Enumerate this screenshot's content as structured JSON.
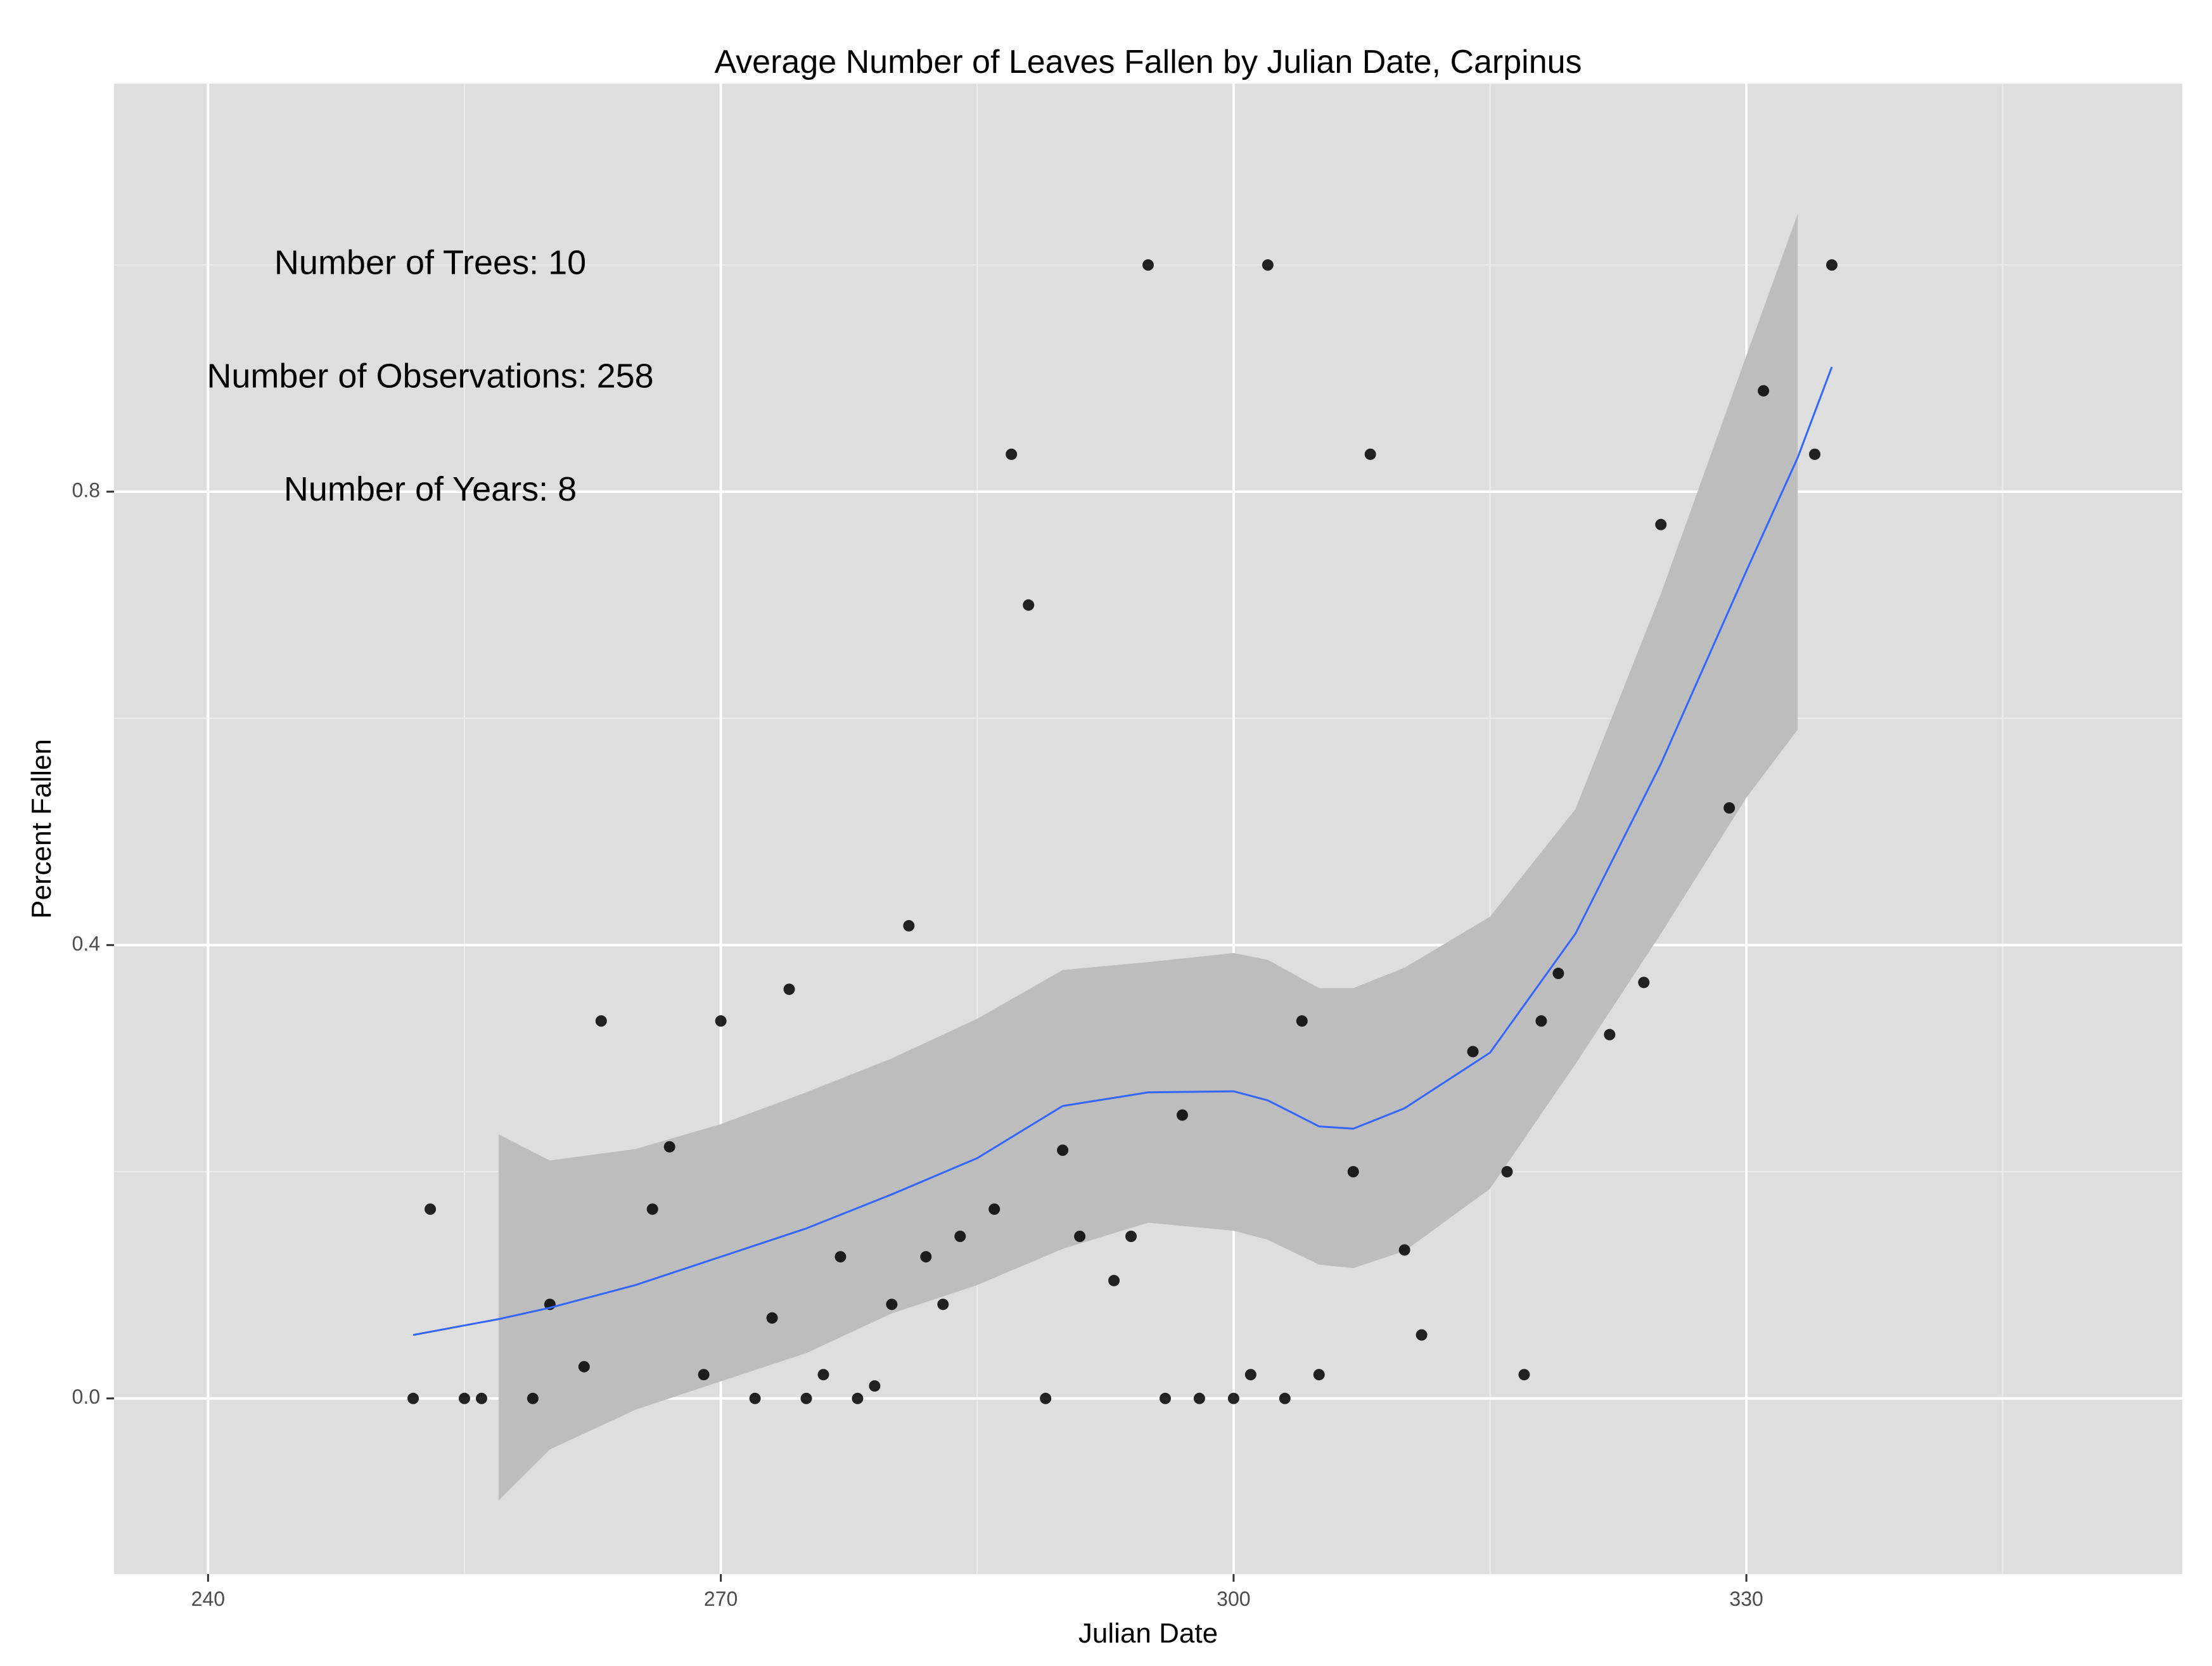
{
  "chart_data": {
    "type": "scatter",
    "title": "Average Number of Leaves Fallen by Julian Date, Carpinus",
    "xlabel": "Julian Date",
    "ylabel": "Percent Fallen",
    "xlim": [
      234.5,
      355.5
    ],
    "ylim": [
      -0.155,
      1.16
    ],
    "x_ticks": [
      240,
      270,
      300,
      330
    ],
    "x_tick_labels": [
      "240",
      "270",
      "300",
      "330"
    ],
    "x_minor_ticks": [
      255,
      285,
      315,
      345
    ],
    "y_ticks": [
      0.0,
      0.4,
      0.8
    ],
    "y_tick_labels": [
      "0.0",
      "0.4",
      "0.8"
    ],
    "y_minor_ticks": [
      0.2,
      0.6,
      1.0
    ],
    "grid": true,
    "annotations": [
      {
        "text": "Number of Trees: 10",
        "x": 253,
        "y": 1.0
      },
      {
        "text": "Number of Observations: 258",
        "x": 253,
        "y": 0.9
      },
      {
        "text": "Number of Years: 8",
        "x": 253,
        "y": 0.8
      }
    ],
    "points": [
      {
        "x": 252,
        "y": 0.0
      },
      {
        "x": 253,
        "y": 0.167
      },
      {
        "x": 255,
        "y": 0.0
      },
      {
        "x": 256,
        "y": 0.0
      },
      {
        "x": 259,
        "y": 0.0
      },
      {
        "x": 260,
        "y": 0.083
      },
      {
        "x": 262,
        "y": 0.028
      },
      {
        "x": 263,
        "y": 0.333
      },
      {
        "x": 266,
        "y": 0.167
      },
      {
        "x": 267,
        "y": 0.222
      },
      {
        "x": 269,
        "y": 0.021
      },
      {
        "x": 270,
        "y": 0.333
      },
      {
        "x": 272,
        "y": 0.0
      },
      {
        "x": 273,
        "y": 0.071
      },
      {
        "x": 274,
        "y": 0.361
      },
      {
        "x": 275,
        "y": 0.0
      },
      {
        "x": 276,
        "y": 0.021
      },
      {
        "x": 277,
        "y": 0.125
      },
      {
        "x": 278,
        "y": 0.0
      },
      {
        "x": 279,
        "y": 0.011
      },
      {
        "x": 280,
        "y": 0.083
      },
      {
        "x": 281,
        "y": 0.417
      },
      {
        "x": 282,
        "y": 0.125
      },
      {
        "x": 283,
        "y": 0.083
      },
      {
        "x": 284,
        "y": 0.143
      },
      {
        "x": 286,
        "y": 0.167
      },
      {
        "x": 287,
        "y": 0.833
      },
      {
        "x": 288,
        "y": 0.7
      },
      {
        "x": 289,
        "y": 0.0
      },
      {
        "x": 290,
        "y": 0.219
      },
      {
        "x": 291,
        "y": 0.143
      },
      {
        "x": 293,
        "y": 0.104
      },
      {
        "x": 294,
        "y": 0.143
      },
      {
        "x": 295,
        "y": 1.0
      },
      {
        "x": 296,
        "y": 0.0
      },
      {
        "x": 297,
        "y": 0.25
      },
      {
        "x": 298,
        "y": 0.0
      },
      {
        "x": 300,
        "y": 0.0
      },
      {
        "x": 301,
        "y": 0.021
      },
      {
        "x": 302,
        "y": 1.0
      },
      {
        "x": 303,
        "y": 0.0
      },
      {
        "x": 304,
        "y": 0.333
      },
      {
        "x": 305,
        "y": 0.021
      },
      {
        "x": 307,
        "y": 0.2
      },
      {
        "x": 308,
        "y": 0.833
      },
      {
        "x": 310,
        "y": 0.131
      },
      {
        "x": 311,
        "y": 0.056
      },
      {
        "x": 314,
        "y": 0.306
      },
      {
        "x": 316,
        "y": 0.2
      },
      {
        "x": 317,
        "y": 0.021
      },
      {
        "x": 318,
        "y": 0.333
      },
      {
        "x": 319,
        "y": 0.375
      },
      {
        "x": 322,
        "y": 0.321
      },
      {
        "x": 324,
        "y": 0.367
      },
      {
        "x": 325,
        "y": 0.771
      },
      {
        "x": 329,
        "y": 0.521
      },
      {
        "x": 331,
        "y": 0.889
      },
      {
        "x": 334,
        "y": 0.833
      },
      {
        "x": 335,
        "y": 1.0
      }
    ],
    "smooth": {
      "x": [
        252,
        257,
        260,
        265,
        270,
        275,
        280,
        285,
        290,
        295,
        300,
        302,
        305,
        307,
        310,
        315,
        320,
        325,
        330,
        333,
        335
      ],
      "y": [
        0.056,
        0.07,
        0.08,
        0.1,
        0.125,
        0.15,
        0.18,
        0.212,
        0.258,
        0.27,
        0.271,
        0.263,
        0.24,
        0.238,
        0.256,
        0.305,
        0.41,
        0.56,
        0.73,
        0.83,
        0.91
      ],
      "lower": [
        null,
        -0.09,
        -0.045,
        -0.01,
        0.015,
        0.04,
        0.075,
        0.1,
        0.132,
        0.155,
        0.148,
        0.14,
        0.118,
        0.115,
        0.13,
        0.185,
        0.295,
        0.41,
        0.53,
        0.59,
        null
      ],
      "upper": [
        null,
        0.233,
        0.21,
        0.22,
        0.242,
        0.27,
        0.3,
        0.335,
        0.378,
        0.385,
        0.393,
        0.387,
        0.362,
        0.362,
        0.38,
        0.425,
        0.52,
        0.71,
        0.92,
        1.045,
        null
      ]
    },
    "colors": {
      "panel": "#dedede",
      "grid_major": "#ffffff",
      "grid_minor": "#ececec",
      "points": "#000000",
      "smooth_line": "#3366ff",
      "ribbon": "#bdbdbd"
    }
  }
}
